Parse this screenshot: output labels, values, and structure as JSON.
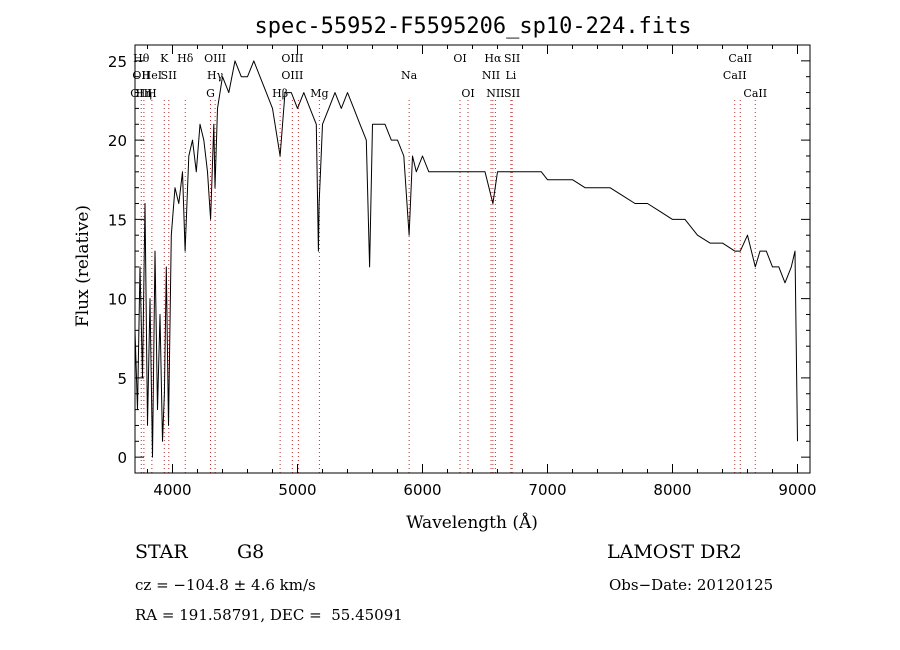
{
  "chart_data": {
    "type": "line",
    "title": "spec-55952-F5595206_sp10-224.fits",
    "xlabel": "Wavelength (Å)",
    "ylabel": "Flux (relative)",
    "xlim": [
      3700,
      9100
    ],
    "ylim": [
      -1,
      26
    ],
    "xticks": [
      4000,
      5000,
      6000,
      7000,
      8000,
      9000
    ],
    "yticks": [
      0,
      5,
      10,
      15,
      20,
      25
    ],
    "grid": false,
    "series": [
      {
        "x": [
          3700,
          3720,
          3740,
          3760,
          3780,
          3800,
          3820,
          3840,
          3860,
          3880,
          3900,
          3920,
          3935,
          3950,
          3968,
          3990,
          4020,
          4050,
          4080,
          4101,
          4130,
          4160,
          4190,
          4220,
          4250,
          4280,
          4305,
          4330,
          4340,
          4360,
          4400,
          4450,
          4500,
          4550,
          4600,
          4650,
          4700,
          4750,
          4800,
          4861,
          4900,
          4950,
          5000,
          5050,
          5100,
          5150,
          5167,
          5173,
          5184,
          5200,
          5250,
          5300,
          5350,
          5400,
          5450,
          5500,
          5550,
          5577,
          5600,
          5650,
          5700,
          5750,
          5800,
          5850,
          5893,
          5920,
          5950,
          6000,
          6050,
          6100,
          6150,
          6200,
          6250,
          6300,
          6350,
          6400,
          6450,
          6500,
          6563,
          6600,
          6650,
          6700,
          6750,
          6800,
          6850,
          6900,
          6950,
          7000,
          7100,
          7200,
          7300,
          7400,
          7500,
          7600,
          7700,
          7800,
          7900,
          8000,
          8100,
          8200,
          8300,
          8400,
          8498,
          8542,
          8600,
          8662,
          8700,
          8750,
          8800,
          8850,
          8900,
          8950,
          8980,
          9000
        ],
        "y": [
          8,
          3,
          12,
          5,
          16,
          2,
          10,
          0,
          13,
          3,
          9,
          1,
          4,
          12,
          2,
          14,
          17,
          16,
          18,
          13,
          19,
          20,
          18,
          21,
          20,
          18,
          15,
          21,
          17,
          22,
          24,
          23,
          25,
          24,
          24,
          25,
          24,
          23,
          22,
          19,
          23,
          23,
          22,
          23,
          22,
          21,
          13,
          16,
          18,
          21,
          22,
          23,
          22,
          23,
          22,
          21,
          20,
          12,
          21,
          21,
          21,
          20,
          20,
          19,
          14,
          19,
          18,
          19,
          18,
          18,
          18,
          18,
          18,
          18,
          18,
          18,
          18,
          18,
          16,
          18,
          18,
          18,
          18,
          18,
          18,
          18,
          18,
          17.5,
          17.5,
          17.5,
          17,
          17,
          17,
          16.5,
          16,
          16,
          15.5,
          15,
          15,
          14,
          13.5,
          13.5,
          13,
          13,
          14,
          12,
          13,
          13,
          12,
          12,
          11,
          12,
          13,
          1
        ]
      }
    ],
    "line_markers": [
      {
        "wl": 3750,
        "labels": [
          "Hθ",
          "OII",
          "OIII"
        ]
      },
      {
        "wl": 3771,
        "labels": [
          "",
          "",
          "Hη"
        ]
      },
      {
        "wl": 3835,
        "labels": [
          "",
          "HeI",
          "H"
        ]
      },
      {
        "wl": 3934,
        "labels": [
          "K",
          "",
          ""
        ]
      },
      {
        "wl": 3970,
        "labels": [
          "",
          "SII",
          ""
        ]
      },
      {
        "wl": 4102,
        "labels": [
          "Hδ",
          "",
          ""
        ]
      },
      {
        "wl": 4304,
        "labels": [
          "",
          "",
          "G"
        ]
      },
      {
        "wl": 4341,
        "labels": [
          "OIII",
          "Hγ",
          ""
        ]
      },
      {
        "wl": 4861,
        "labels": [
          "",
          "",
          "Hβ"
        ]
      },
      {
        "wl": 4959,
        "labels": [
          "OIII",
          "OIII",
          ""
        ]
      },
      {
        "wl": 5007,
        "labels": [
          "",
          "",
          ""
        ]
      },
      {
        "wl": 5175,
        "labels": [
          "",
          "",
          "Mg"
        ]
      },
      {
        "wl": 5893,
        "labels": [
          "",
          "Na",
          ""
        ]
      },
      {
        "wl": 6300,
        "labels": [
          "OI",
          "",
          ""
        ]
      },
      {
        "wl": 6364,
        "labels": [
          "",
          "",
          "OI"
        ]
      },
      {
        "wl": 6548,
        "labels": [
          "",
          "NII",
          ""
        ]
      },
      {
        "wl": 6563,
        "labels": [
          "Hα",
          "",
          ""
        ]
      },
      {
        "wl": 6583,
        "labels": [
          "",
          "",
          "NII"
        ]
      },
      {
        "wl": 6707,
        "labels": [
          "",
          "Li",
          ""
        ]
      },
      {
        "wl": 6717,
        "labels": [
          "SII",
          "",
          "SII"
        ]
      },
      {
        "wl": 8498,
        "labels": [
          "",
          "CaII",
          ""
        ]
      },
      {
        "wl": 8542,
        "labels": [
          "CaII",
          "",
          ""
        ]
      },
      {
        "wl": 8662,
        "labels": [
          "",
          "",
          "CaII"
        ]
      }
    ]
  },
  "info": {
    "object_class": "STAR",
    "subclass": "G8",
    "survey": "LAMOST DR2",
    "cz": "cz = −104.8 ± 4.6 km/s",
    "obs_date": "Obs−Date: 20120125",
    "coords": "RA = 191.58791, DEC =  55.45091"
  }
}
